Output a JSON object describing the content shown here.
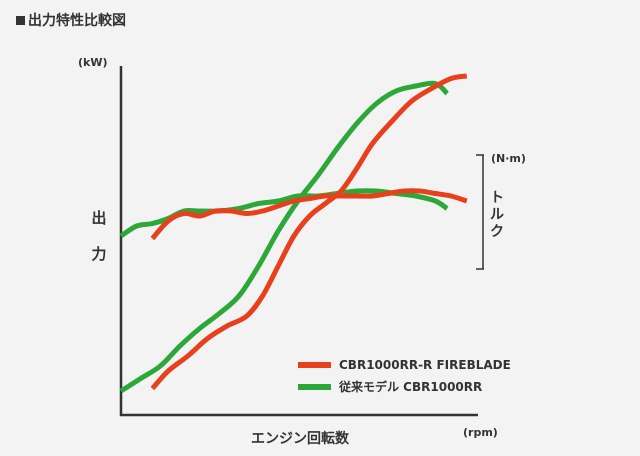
{
  "heading": "出力特性比較図",
  "colors": {
    "fireblade": "#e8401c",
    "previous": "#2ca838",
    "axis": "#333333"
  },
  "chart_data": {
    "type": "line",
    "title": "出力特性比較図",
    "xlabel": "エンジン回転数",
    "xunit": "(rpm)",
    "y_left_label": "出力",
    "y_left_unit": "(kW)",
    "y_right_label": "トルク",
    "y_right_unit": "(N·m)",
    "grid": false,
    "legend_position": "bottom-right",
    "legend": [
      {
        "label": "CBR1000RR-R FIREBLADE",
        "color": "#e8401c"
      },
      {
        "label": "従来モデル CBR1000RR",
        "color": "#2ca838"
      }
    ],
    "note": "Axes carry no numeric tick values; curves recorded on a relative 0–100 scale (x: engine speed, y: chart height).",
    "series": [
      {
        "name": "CBR1000RR-R FIREBLADE",
        "metric": "出力",
        "color": "#e8401c",
        "x": [
          8,
          12,
          17,
          22,
          27,
          32,
          36,
          40,
          44,
          48,
          52,
          56,
          60,
          64,
          69,
          74,
          79,
          84,
          88
        ],
        "y": [
          1,
          8,
          14,
          21,
          26,
          30,
          38,
          50,
          62,
          70,
          75,
          80,
          89,
          99,
          108,
          116,
          121,
          125,
          126
        ]
      },
      {
        "name": "CBR1000RR-R FIREBLADE",
        "metric": "トルク",
        "color": "#e8401c",
        "x": [
          8,
          12,
          16,
          20,
          24,
          28,
          32,
          36,
          40,
          44,
          48,
          52,
          56,
          60,
          64,
          68,
          72,
          76,
          80,
          84,
          88
        ],
        "y": [
          61,
          68,
          71,
          70,
          72,
          72,
          71,
          72,
          74,
          76,
          77,
          78,
          78,
          78,
          78,
          79,
          80,
          80,
          79,
          78,
          76
        ]
      },
      {
        "name": "従来モデル CBR1000RR",
        "metric": "出力",
        "color": "#2ca838",
        "x": [
          0,
          5,
          10,
          15,
          20,
          25,
          30,
          35,
          40,
          45,
          50,
          55,
          60,
          65,
          70,
          75,
          80,
          83
        ],
        "y": [
          0,
          5,
          10,
          18,
          25,
          31,
          38,
          50,
          64,
          76,
          86,
          97,
          107,
          115,
          120,
          122,
          123,
          119
        ]
      },
      {
        "name": "従来モデル CBR1000RR",
        "metric": "トルク",
        "color": "#2ca838",
        "x": [
          0,
          4,
          8,
          12,
          16,
          20,
          25,
          30,
          35,
          40,
          45,
          50,
          55,
          60,
          65,
          70,
          75,
          80,
          83
        ],
        "y": [
          62,
          66,
          67,
          69,
          72,
          72,
          72,
          73,
          75,
          76,
          78,
          78,
          79,
          80,
          80,
          79,
          78,
          76,
          73
        ]
      }
    ]
  }
}
